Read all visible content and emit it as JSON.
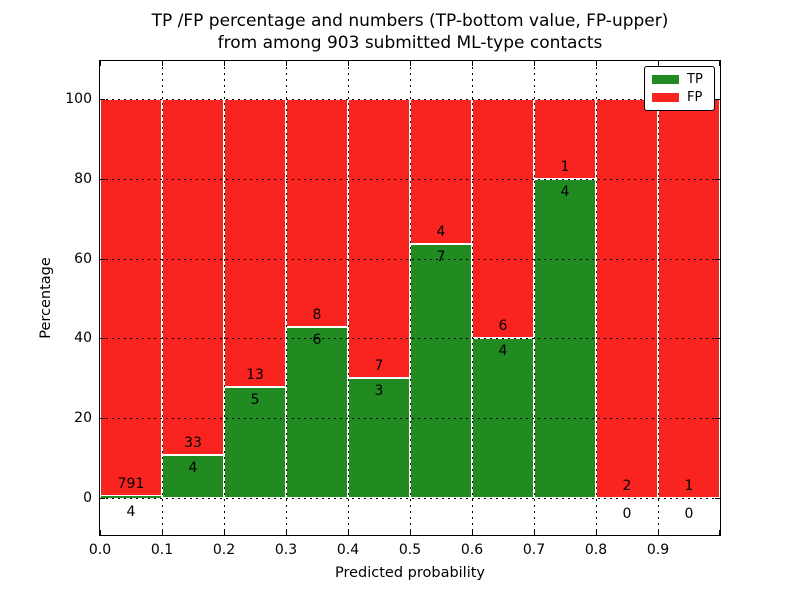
{
  "title": {
    "line1": "TP /FP percentage and numbers (TP-bottom value, FP-upper)",
    "line2": "from among 903 submitted ML-type contacts"
  },
  "axes": {
    "xlabel": "Predicted probability",
    "ylabel": "Percentage",
    "x_tick_labels": [
      "0.0",
      "0.1",
      "0.2",
      "0.3",
      "0.4",
      "0.5",
      "0.6",
      "0.7",
      "0.8",
      "0.9"
    ],
    "y_tick_labels": [
      "0",
      "20",
      "40",
      "60",
      "80",
      "100"
    ]
  },
  "legend": {
    "items": [
      {
        "label": "TP",
        "color": "#218a21"
      },
      {
        "label": "FP",
        "color": "#f92420"
      }
    ]
  },
  "chart_data": {
    "type": "bar",
    "stacked": true,
    "title": "TP /FP percentage and numbers (TP-bottom value, FP-upper) from among 903 submitted ML-type contacts",
    "xlabel": "Predicted probability",
    "ylabel": "Percentage",
    "total_contacts": 903,
    "bin_edges": [
      0.0,
      0.1,
      0.2,
      0.3,
      0.4,
      0.5,
      0.6,
      0.7,
      0.8,
      0.9,
      1.0
    ],
    "series": [
      {
        "name": "TP",
        "color": "#218a21",
        "counts": [
          4,
          4,
          5,
          6,
          3,
          7,
          4,
          4,
          0,
          0
        ]
      },
      {
        "name": "FP",
        "color": "#f92420",
        "counts": [
          791,
          33,
          13,
          8,
          7,
          4,
          6,
          1,
          2,
          1
        ]
      }
    ],
    "tp_percent_per_bin": [
      0.5,
      10.8,
      27.8,
      42.9,
      30.0,
      63.6,
      40.0,
      80.0,
      0.0,
      0.0
    ],
    "ylim_percent": [
      0,
      100
    ],
    "grid": true,
    "grid_style": "dotted",
    "legend_position": "upper right"
  }
}
